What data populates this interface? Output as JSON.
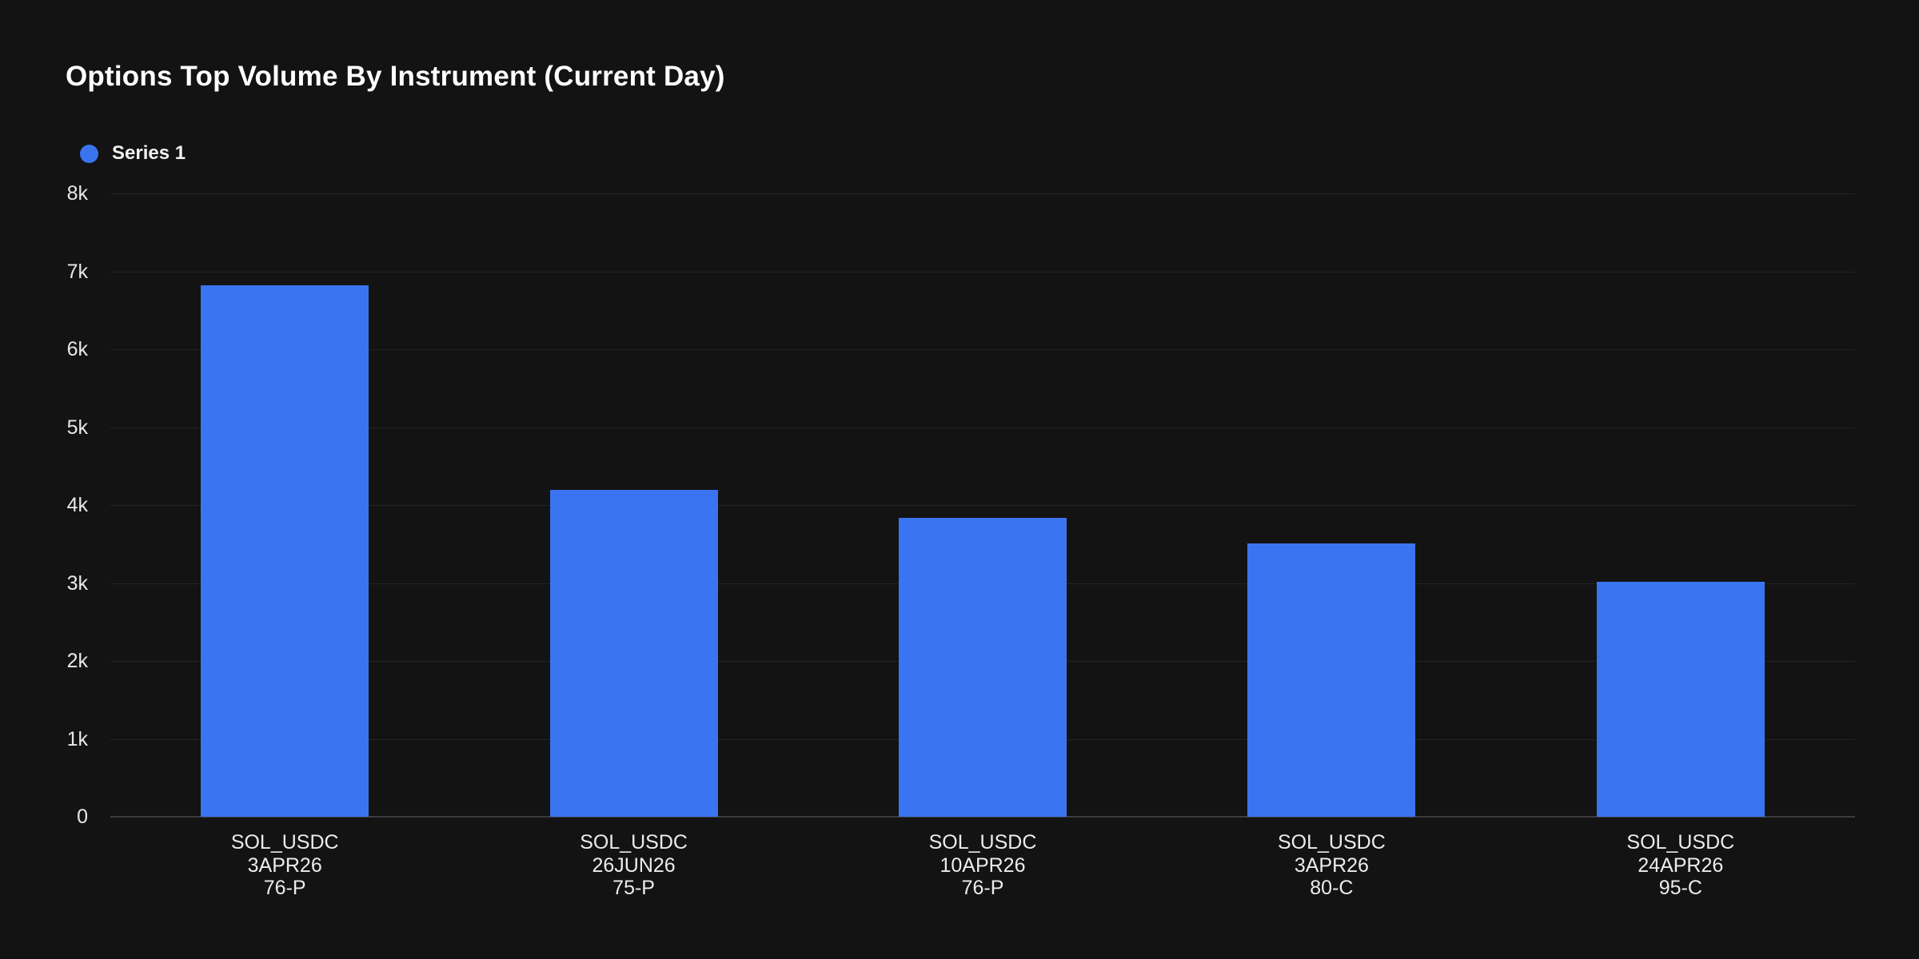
{
  "header": {
    "title": "Options Top Volume By Instrument (Current Day)"
  },
  "legend": {
    "items": [
      {
        "label": "Series 1",
        "color": "#3b74f0"
      }
    ]
  },
  "colors": {
    "background": "#131313",
    "bar": "#3b74f0",
    "gridline": "#242424",
    "axis_line": "#3c3c40",
    "text": "#ececec",
    "title_text": "#ffffff"
  },
  "chart_data": {
    "type": "bar",
    "title": "Options Top Volume By Instrument (Current Day)",
    "xlabel": "",
    "ylabel": "",
    "ylim": [
      0,
      8000
    ],
    "grid": true,
    "legend_position": "top-left",
    "categories": [
      [
        "SOL_USDC",
        "3APR26",
        "76-P"
      ],
      [
        "SOL_USDC",
        "26JUN26",
        "75-P"
      ],
      [
        "SOL_USDC",
        "10APR26",
        "76-P"
      ],
      [
        "SOL_USDC",
        "3APR26",
        "80-C"
      ],
      [
        "SOL_USDC",
        "24APR26",
        "95-C"
      ]
    ],
    "series": [
      {
        "name": "Series 1",
        "values": [
          6820,
          4200,
          3840,
          3510,
          3020
        ]
      }
    ],
    "yticks": [
      {
        "label": "0",
        "value": 0
      },
      {
        "label": "1k",
        "value": 1000
      },
      {
        "label": "2k",
        "value": 2000
      },
      {
        "label": "3k",
        "value": 3000
      },
      {
        "label": "4k",
        "value": 4000
      },
      {
        "label": "5k",
        "value": 5000
      },
      {
        "label": "6k",
        "value": 6000
      },
      {
        "label": "7k",
        "value": 7000
      },
      {
        "label": "8k",
        "value": 8000
      }
    ]
  }
}
